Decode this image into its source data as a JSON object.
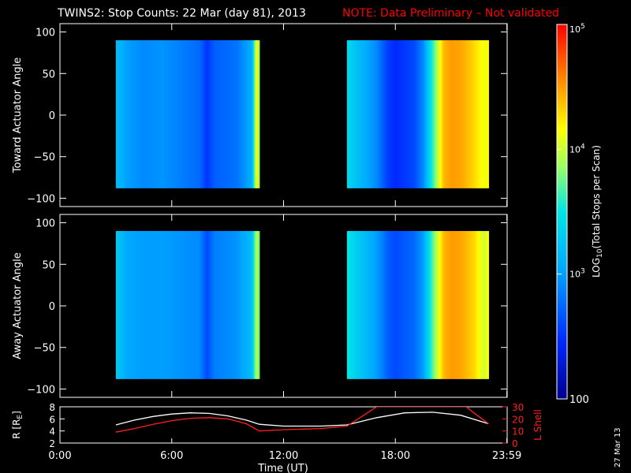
{
  "title": {
    "main": "TWINS2: Stop Counts: 22 Mar (day  81), 2013",
    "note": "NOTE: Data Preliminary – Not validated"
  },
  "date_stamp": "27 Mar 13",
  "colors": {
    "background": "#000000",
    "foreground": "#ffffff",
    "note": "#ff0000",
    "r_line": "#ffffff",
    "lshell_line": "#ff2020"
  },
  "colorbar": {
    "label": "LOG10(Total Stops per Scan)",
    "label_main": "LOG",
    "label_sub": "10",
    "label_rest": "(Total Stops per Scan)",
    "scale": "log",
    "range": [
      100,
      100000
    ],
    "ticks": [
      {
        "value": 100,
        "label": "100"
      },
      {
        "value": 1000,
        "base": "10",
        "exp": "3"
      },
      {
        "value": 10000,
        "base": "10",
        "exp": "4"
      },
      {
        "value": 100000,
        "base": "10",
        "exp": "5"
      }
    ]
  },
  "chart_data": [
    {
      "type": "heatmap",
      "panel": "toward",
      "ylabel": "Toward Actuator Angle",
      "xlim": [
        0,
        24
      ],
      "ylim": [
        -110,
        110
      ],
      "yticks": [
        "100",
        "50",
        "0",
        "−50",
        "−100"
      ],
      "ytick_values": [
        100,
        50,
        0,
        -50,
        -100
      ],
      "angle_range": [
        -88,
        90
      ],
      "segments": [
        [
          3.0,
          10.7
        ],
        [
          15.4,
          23.0
        ]
      ],
      "log_counts_profile": {
        "t": [
          3.0,
          3.6,
          4.5,
          5.5,
          6.5,
          7.5,
          7.9,
          8.3,
          9.5,
          10.3,
          10.55,
          10.7,
          15.4,
          16.0,
          17.0,
          17.6,
          18.0,
          19.0,
          19.5,
          20.0,
          20.6,
          21.0,
          21.6,
          22.2,
          22.8,
          23.0
        ],
        "v": [
          3.2,
          3.0,
          2.9,
          2.95,
          2.85,
          2.75,
          2.5,
          2.7,
          2.8,
          3.1,
          4.2,
          3.8,
          3.4,
          3.2,
          2.9,
          2.55,
          2.45,
          2.6,
          2.9,
          3.6,
          4.4,
          4.5,
          4.45,
          4.3,
          4.1,
          4.2
        ]
      }
    },
    {
      "type": "heatmap",
      "panel": "away",
      "ylabel": "Away Actuator Angle",
      "xlim": [
        0,
        24
      ],
      "ylim": [
        -110,
        110
      ],
      "yticks": [
        "100",
        "50",
        "0",
        "−50",
        "−100"
      ],
      "ytick_values": [
        100,
        50,
        0,
        -50,
        -100
      ],
      "angle_range": [
        -88,
        90
      ],
      "segments": [
        [
          3.0,
          10.7
        ],
        [
          15.4,
          23.0
        ]
      ],
      "log_counts_profile": {
        "t": [
          3.0,
          3.6,
          4.5,
          5.5,
          6.5,
          7.5,
          7.9,
          8.3,
          9.5,
          10.3,
          10.55,
          10.7,
          15.4,
          16.0,
          17.0,
          17.6,
          18.0,
          19.0,
          19.5,
          20.0,
          20.6,
          21.0,
          21.6,
          22.2,
          22.8,
          23.0
        ],
        "v": [
          3.3,
          3.05,
          3.0,
          3.0,
          2.95,
          2.9,
          2.6,
          2.85,
          2.95,
          3.2,
          4.0,
          3.7,
          3.5,
          3.3,
          3.0,
          2.7,
          2.6,
          2.75,
          3.0,
          3.7,
          4.4,
          4.5,
          4.45,
          4.3,
          4.0,
          4.2
        ]
      }
    },
    {
      "type": "line",
      "panel": "orbit",
      "xlabel": "Time (UT)",
      "xlim": [
        0,
        24
      ],
      "xticks": [
        "0:00",
        "6:00",
        "12:00",
        "18:00",
        "23:59"
      ],
      "xtick_values": [
        0,
        6,
        12,
        18,
        23.983
      ],
      "ylabel_left": "R [RE]",
      "ylabel_left_main": "R [R",
      "ylabel_left_sub": "E",
      "ylabel_left_end": "]",
      "ylim_left": [
        2,
        8
      ],
      "yticks_left": [
        "2",
        "4",
        "6",
        "8"
      ],
      "ylabel_right": "L Shell",
      "ylim_right": [
        0,
        30
      ],
      "yticks_right": [
        "0",
        "10",
        "20",
        "30"
      ],
      "series": [
        {
          "name": "R [RE]",
          "axis": "left",
          "color": "#ffffff",
          "x": [
            3.0,
            4.0,
            5.0,
            6.0,
            7.0,
            8.0,
            9.0,
            10.0,
            10.7,
            12.0,
            14.0,
            15.4,
            17.0,
            18.5,
            20.0,
            21.5,
            23.0
          ],
          "y": [
            5.0,
            5.8,
            6.4,
            6.8,
            7.0,
            6.9,
            6.5,
            5.8,
            5.1,
            4.8,
            4.8,
            5.0,
            6.2,
            7.0,
            7.1,
            6.6,
            5.2
          ]
        },
        {
          "name": "L Shell",
          "axis": "right",
          "color": "#ff2020",
          "x": [
            3.0,
            4.0,
            5.0,
            6.0,
            7.0,
            8.0,
            9.0,
            10.0,
            10.7,
            12.0,
            14.0,
            15.4,
            16.2,
            17.0,
            21.8,
            22.3,
            23.0
          ],
          "y": [
            9,
            12,
            15.5,
            18.5,
            20.5,
            21,
            20,
            16,
            10,
            11,
            12,
            14,
            22,
            30,
            30,
            24,
            16
          ]
        }
      ]
    }
  ]
}
